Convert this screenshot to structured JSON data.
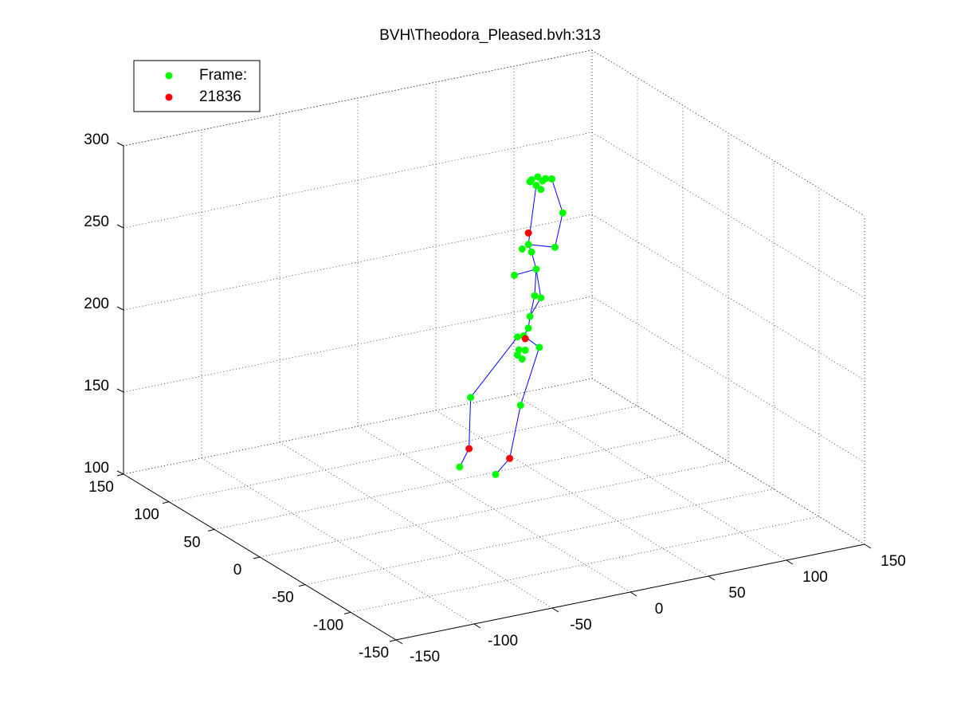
{
  "chart_data": {
    "type": "scatter3d",
    "title": "BVH\\Theodora_Pleased.bvh:313",
    "xlim": [
      -150,
      150
    ],
    "xticks": [
      -150,
      -100,
      -50,
      0,
      50,
      100,
      150
    ],
    "ylim": [
      -150,
      150
    ],
    "yticks": [
      -150,
      -100,
      -50,
      0,
      50,
      100,
      150
    ],
    "zlim": [
      100,
      300
    ],
    "zticks": [
      100,
      150,
      200,
      250,
      300
    ],
    "grid": true,
    "legend": "upper-left",
    "series": [
      {
        "name": "Frame:",
        "color": "#00ff00",
        "x": [
          24,
          28,
          31,
          27,
          30,
          23,
          33,
          37,
          44,
          39,
          22,
          18,
          24,
          27,
          13,
          26,
          30,
          23,
          22,
          15,
          19,
          16,
          20,
          15,
          29,
          -15,
          17,
          -22,
          1,
          18
        ],
        "y": [
          0,
          0,
          0,
          0,
          0,
          0,
          0,
          0,
          0,
          0,
          0,
          0,
          0,
          0,
          0,
          0,
          0,
          0,
          0,
          0,
          0,
          0,
          0,
          0,
          0,
          0,
          0,
          0,
          0,
          0
        ],
        "z": [
          296,
          297,
          294,
          292,
          289,
          295,
          295,
          294,
          272,
          252,
          257,
          255,
          252,
          241,
          240,
          225,
          223,
          213,
          206,
          202,
          202,
          194,
          193,
          191,
          193,
          171,
          160,
          130,
          121,
          188
        ]
      },
      {
        "name": "21836",
        "color": "#ff0000",
        "x": [
          22,
          20,
          -16,
          10
        ],
        "y": [
          0,
          0,
          0,
          0
        ],
        "z": [
          264,
          200,
          140,
          129
        ]
      }
    ],
    "lines": {
      "color": "#0000ff",
      "x": [
        37,
        44,
        39,
        22,
        null,
        27,
        22,
        24,
        27,
        26,
        23,
        22,
        19,
        20,
        null,
        13,
        27,
        30,
        23,
        null,
        15,
        -15,
        -16,
        -22,
        null,
        19,
        29,
        17,
        10,
        1
      ],
      "y": [
        0,
        0,
        0,
        0,
        null,
        0,
        0,
        0,
        0,
        0,
        0,
        0,
        0,
        0,
        null,
        0,
        0,
        0,
        0,
        null,
        0,
        0,
        0,
        0,
        null,
        0,
        0,
        0,
        0,
        0
      ],
      "z": [
        294,
        272,
        252,
        257,
        null,
        292,
        257,
        252,
        241,
        225,
        213,
        206,
        202,
        200,
        null,
        240,
        241,
        223,
        213,
        null,
        202,
        171,
        140,
        130,
        null,
        202,
        193,
        160,
        129,
        121
      ]
    }
  }
}
